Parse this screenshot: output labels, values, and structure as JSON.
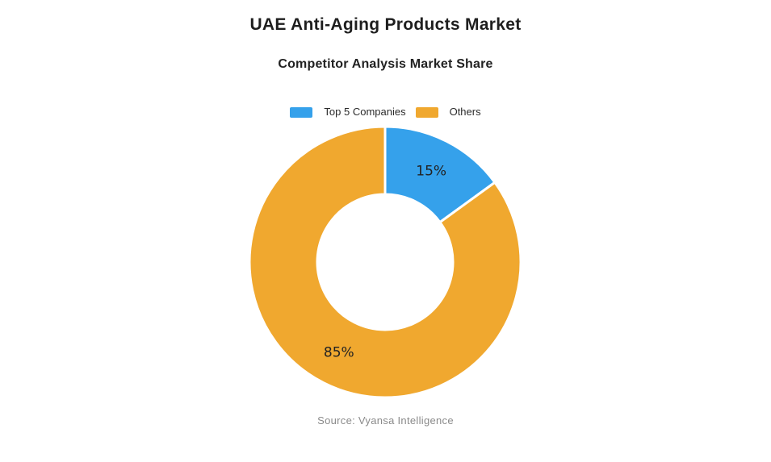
{
  "page": {
    "title": "UAE Anti-Aging Products Market",
    "subtitle": "Competitor Analysis Market Share",
    "source": "Source: Vyansa Intelligence"
  },
  "legend": {
    "items": [
      {
        "label": "Top 5 Companies",
        "color": "#35A1EB"
      },
      {
        "label": "Others",
        "color": "#F0A82F"
      }
    ]
  },
  "chart_data": {
    "type": "pie",
    "subtype": "donut",
    "title": "UAE Anti-Aging Products Market",
    "subtitle": "Competitor Analysis Market Share",
    "source": "Source: Vyansa Intelligence",
    "categories": [
      "Top 5 Companies",
      "Others"
    ],
    "values": [
      15,
      85
    ],
    "labels": [
      "15%",
      "85%"
    ],
    "colors": [
      "#35A1EB",
      "#F0A82F"
    ],
    "label_color": "#222222",
    "start_angle_deg": 0,
    "direction": "clockwise",
    "inner_radius_ratio": 0.5,
    "slice_border_color": "#ffffff",
    "legend_position": "top"
  }
}
